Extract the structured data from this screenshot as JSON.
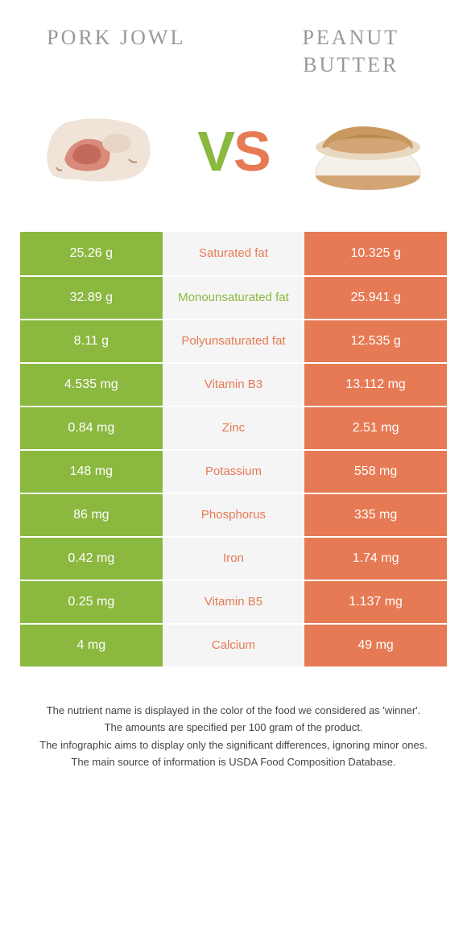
{
  "titles": {
    "left": "Pork jowl",
    "right": "Peanut butter"
  },
  "vs": {
    "v": "V",
    "s": "S"
  },
  "colors": {
    "left": "#8bb83f",
    "right": "#e67a54",
    "midBg": "#f5f5f5",
    "titleText": "#999999",
    "bodyBg": "#ffffff"
  },
  "table": {
    "rows": [
      {
        "left": "25.26 g",
        "label": "Saturated fat",
        "right": "10.325 g",
        "winner": "right"
      },
      {
        "left": "32.89 g",
        "label": "Monounsaturated fat",
        "right": "25.941 g",
        "winner": "left"
      },
      {
        "left": "8.11 g",
        "label": "Polyunsaturated fat",
        "right": "12.535 g",
        "winner": "right"
      },
      {
        "left": "4.535 mg",
        "label": "Vitamin B3",
        "right": "13.112 mg",
        "winner": "right"
      },
      {
        "left": "0.84 mg",
        "label": "Zinc",
        "right": "2.51 mg",
        "winner": "right"
      },
      {
        "left": "148 mg",
        "label": "Potassium",
        "right": "558 mg",
        "winner": "right"
      },
      {
        "left": "86 mg",
        "label": "Phosphorus",
        "right": "335 mg",
        "winner": "right"
      },
      {
        "left": "0.42 mg",
        "label": "Iron",
        "right": "1.74 mg",
        "winner": "right"
      },
      {
        "left": "0.25 mg",
        "label": "Vitamin B5",
        "right": "1.137 mg",
        "winner": "right"
      },
      {
        "left": "4 mg",
        "label": "Calcium",
        "right": "49 mg",
        "winner": "right"
      }
    ]
  },
  "footer": {
    "line1": "The nutrient name is displayed in the color of the food we considered as 'winner'.",
    "line2": "The amounts are specified per 100 gram of the product.",
    "line3": "The infographic aims to display only the significant differences, ignoring minor ones.",
    "line4": "The main source of information is USDA Food Composition Database."
  }
}
